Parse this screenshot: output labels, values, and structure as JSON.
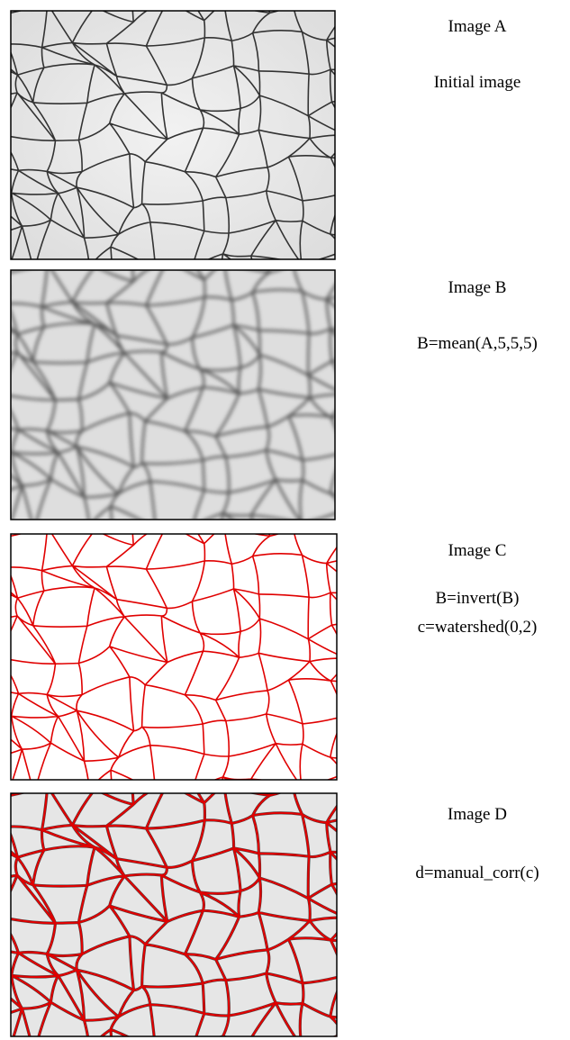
{
  "panels": [
    {
      "title": "Image A",
      "caption": [
        "Initial image"
      ]
    },
    {
      "title": "Image B",
      "caption": [
        "B=mean(A,5,5,5)"
      ]
    },
    {
      "title": "Image C",
      "caption": [
        "B=invert(B)",
        "c=watershed(0,2)"
      ]
    },
    {
      "title": "Image D",
      "caption": [
        "d=manual_corr(c)"
      ]
    }
  ]
}
